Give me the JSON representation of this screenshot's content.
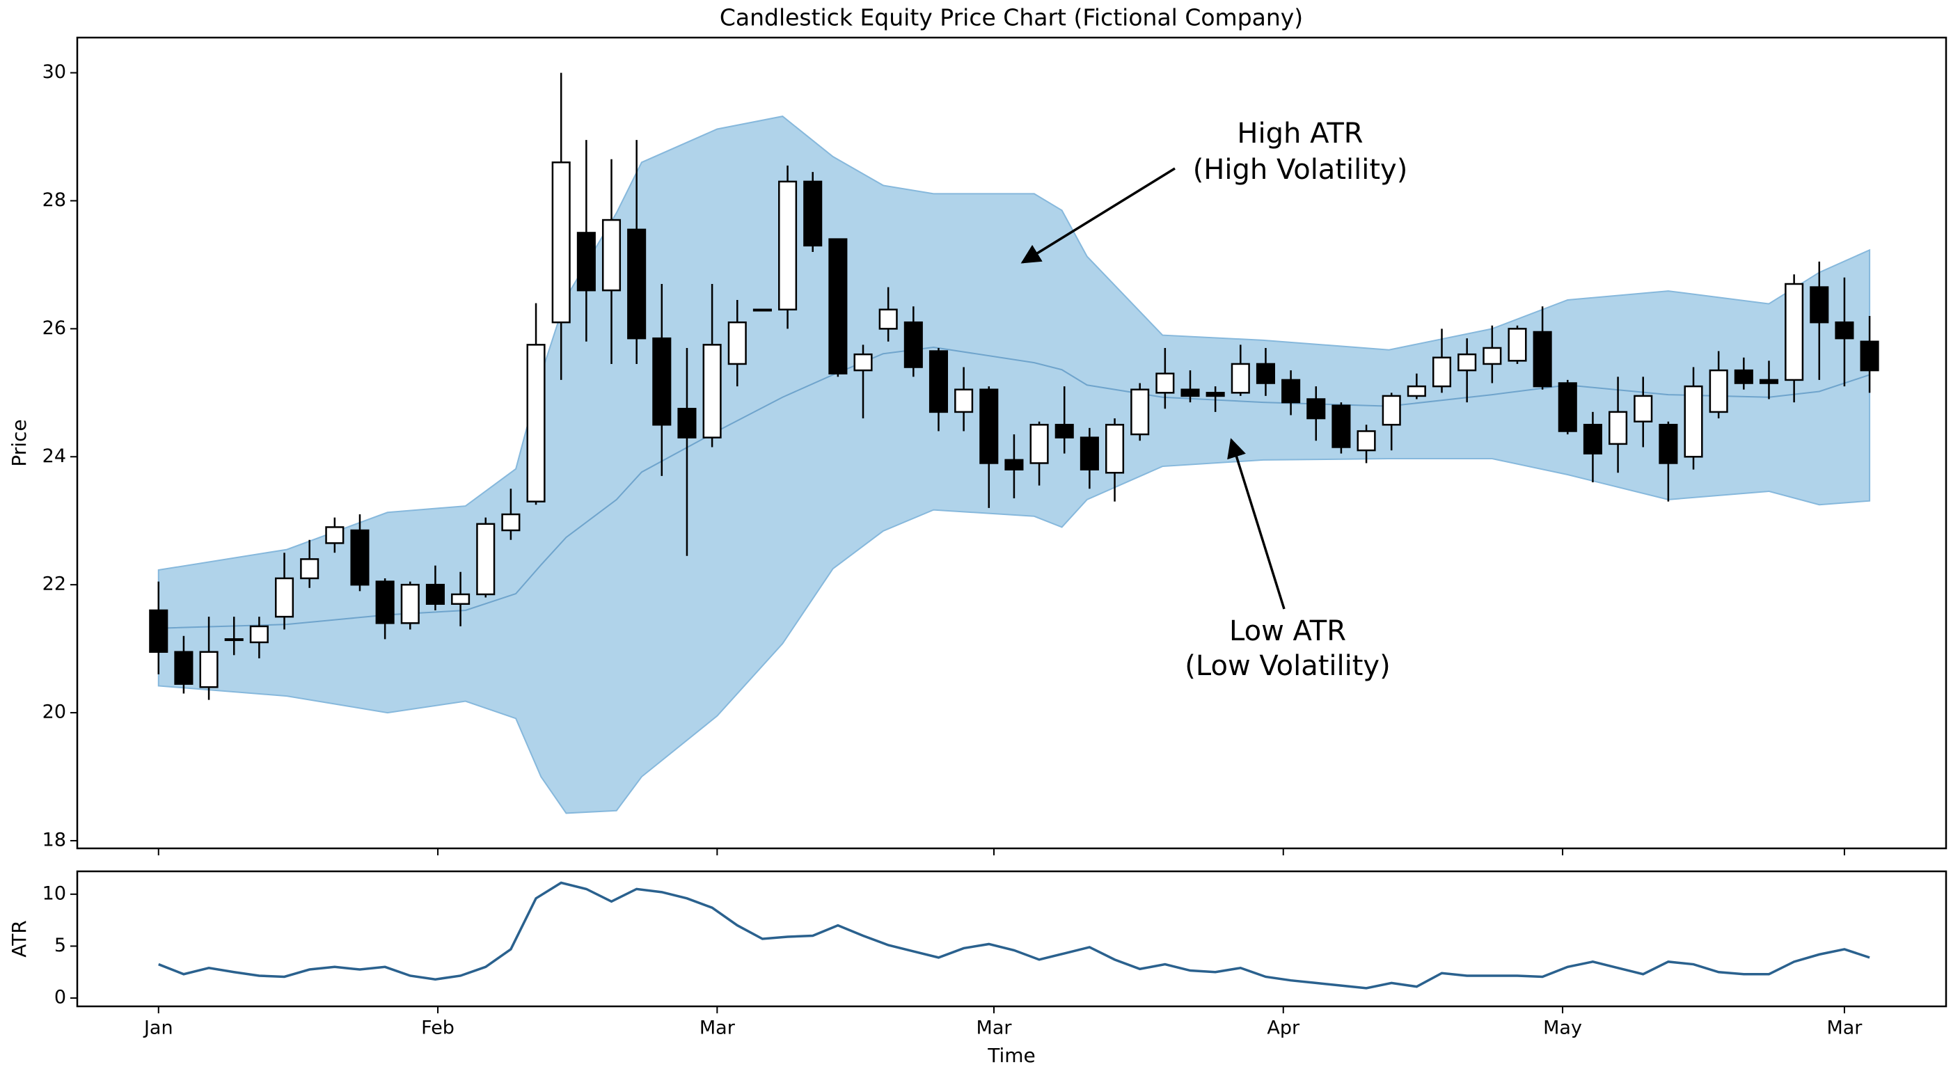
{
  "chart_data": [
    {
      "type": "candlestick",
      "title": "Candlestick Equity Price Chart (Fictional Company)",
      "ylabel": "Price",
      "x": [
        0,
        1,
        2,
        3,
        4,
        5,
        6,
        7,
        8,
        9,
        10,
        11,
        12,
        13,
        14,
        15,
        16,
        17,
        18,
        19,
        20,
        21,
        22,
        23,
        24,
        25,
        26,
        27,
        28,
        29,
        30,
        31,
        32,
        33,
        34,
        35,
        36,
        37,
        38,
        39,
        40,
        41,
        42,
        43,
        44,
        45,
        46,
        47,
        48,
        49,
        50,
        51,
        52,
        53,
        54,
        55,
        56,
        57,
        58,
        59,
        60,
        61,
        62,
        63,
        64,
        65,
        66,
        67,
        68
      ],
      "open": [
        21.6,
        20.95,
        20.4,
        21.15,
        21.1,
        21.5,
        22.1,
        22.65,
        22.85,
        22.05,
        21.4,
        22.0,
        21.7,
        21.85,
        22.85,
        23.3,
        26.1,
        27.5,
        26.6,
        27.55,
        25.85,
        24.75,
        24.3,
        25.45,
        26.3,
        26.3,
        28.3,
        27.4,
        25.35,
        26.0,
        26.1,
        25.65,
        24.7,
        25.05,
        23.95,
        23.9,
        24.5,
        24.3,
        23.75,
        24.35,
        25.0,
        25.05,
        25.0,
        25.0,
        25.45,
        25.2,
        24.9,
        24.8,
        24.1,
        24.5,
        24.95,
        25.1,
        25.35,
        25.45,
        25.5,
        25.95,
        25.15,
        24.5,
        24.2,
        24.55,
        24.5,
        24.0,
        24.7,
        25.35,
        25.2,
        25.2,
        26.65,
        26.1,
        25.8
      ],
      "high": [
        22.05,
        21.2,
        21.5,
        21.5,
        21.5,
        22.5,
        22.7,
        23.05,
        23.1,
        22.1,
        22.05,
        22.3,
        22.2,
        23.05,
        23.5,
        26.4,
        30.0,
        28.95,
        28.65,
        28.95,
        26.7,
        25.7,
        26.7,
        26.45,
        26.3,
        28.55,
        28.45,
        27.4,
        25.75,
        26.65,
        26.35,
        25.7,
        25.4,
        25.1,
        24.35,
        24.55,
        25.1,
        24.45,
        24.6,
        25.15,
        25.7,
        25.35,
        25.1,
        25.75,
        25.7,
        25.35,
        25.1,
        24.85,
        24.5,
        25.0,
        25.3,
        26.0,
        25.85,
        26.05,
        26.05,
        26.35,
        25.2,
        24.7,
        25.25,
        25.25,
        24.55,
        25.4,
        25.65,
        25.55,
        25.5,
        26.85,
        27.05,
        26.8,
        26.2
      ],
      "low": [
        20.6,
        20.3,
        20.2,
        20.9,
        20.85,
        21.3,
        21.95,
        22.5,
        21.9,
        21.15,
        21.3,
        21.6,
        21.35,
        21.8,
        22.7,
        23.25,
        25.2,
        25.8,
        25.45,
        25.45,
        23.7,
        22.45,
        24.15,
        25.1,
        26.3,
        26.0,
        27.2,
        25.25,
        24.6,
        25.8,
        25.25,
        24.4,
        24.4,
        23.2,
        23.35,
        23.55,
        24.05,
        23.5,
        23.3,
        24.25,
        24.75,
        24.85,
        24.7,
        24.95,
        24.95,
        24.65,
        24.25,
        24.05,
        23.9,
        24.1,
        24.9,
        25.0,
        24.85,
        25.15,
        25.45,
        25.05,
        24.35,
        23.6,
        23.75,
        24.15,
        23.3,
        23.8,
        24.6,
        25.05,
        24.9,
        24.85,
        25.2,
        25.1,
        25.0
      ],
      "close": [
        20.95,
        20.45,
        20.95,
        21.15,
        21.35,
        22.1,
        22.4,
        22.9,
        22.0,
        21.4,
        22.0,
        21.7,
        21.85,
        22.95,
        23.1,
        25.75,
        28.6,
        26.6,
        27.7,
        25.85,
        24.5,
        24.3,
        25.75,
        26.1,
        26.3,
        28.3,
        27.3,
        25.3,
        25.6,
        26.3,
        25.4,
        24.7,
        25.05,
        23.9,
        23.8,
        24.5,
        24.3,
        23.8,
        24.5,
        25.05,
        25.3,
        24.95,
        24.95,
        25.45,
        25.15,
        24.85,
        24.6,
        24.15,
        24.4,
        24.95,
        25.1,
        25.55,
        25.6,
        25.7,
        26.0,
        25.1,
        24.4,
        24.05,
        24.7,
        24.95,
        23.9,
        25.1,
        25.35,
        25.15,
        25.15,
        26.7,
        26.1,
        25.85,
        25.35
      ],
      "up_color": "#ffffff",
      "down_color": "#000000",
      "edge_color": "#000000",
      "band": {
        "x": [
          0,
          5.1,
          9.1,
          12.2,
          14.2,
          15.2,
          16.2,
          18.2,
          19.2,
          22.2,
          24.8,
          26.8,
          28.8,
          30.8,
          34.8,
          35.9,
          36.9,
          39.9,
          43.9,
          48.9,
          53.0,
          56.0,
          60.0,
          64.0,
          66.0,
          68.0
        ],
        "upper": [
          22.23,
          22.55,
          23.13,
          23.23,
          23.81,
          25.28,
          26.49,
          27.81,
          28.6,
          29.12,
          29.32,
          28.69,
          28.24,
          28.11,
          28.11,
          27.85,
          27.13,
          25.9,
          25.82,
          25.67,
          26.0,
          26.45,
          26.59,
          26.39,
          26.88,
          27.23
        ],
        "lower": [
          20.42,
          20.26,
          20.0,
          20.18,
          19.91,
          19.0,
          18.43,
          18.47,
          19.0,
          19.95,
          21.08,
          22.25,
          22.84,
          23.17,
          23.07,
          22.9,
          23.33,
          23.85,
          23.95,
          23.97,
          23.97,
          23.72,
          23.33,
          23.46,
          23.25,
          23.31
        ],
        "middle": [
          21.32,
          21.38,
          21.53,
          21.6,
          21.86,
          22.31,
          22.74,
          23.33,
          23.76,
          24.4,
          24.93,
          25.28,
          25.61,
          25.71,
          25.47,
          25.36,
          25.12,
          24.93,
          24.85,
          24.79,
          24.97,
          25.12,
          24.97,
          24.93,
          25.02,
          25.28
        ],
        "color": "#b0d3ea",
        "edge_color": "#86b8dc",
        "line_color": "#6fa4cc"
      },
      "annotations": [
        {
          "lines": [
            "High ATR",
            "(High Volatility)"
          ]
        },
        {
          "lines": [
            "Low ATR",
            "(Low Volatility)"
          ]
        }
      ],
      "xlim": [
        -3.23,
        71.04
      ],
      "ylim": [
        17.88,
        30.55
      ],
      "yticks": [
        18,
        20,
        22,
        24,
        26,
        28,
        30
      ]
    },
    {
      "type": "line",
      "ylabel": "ATR",
      "xlabel": "Time",
      "x": [
        0,
        1,
        2,
        3,
        4,
        5,
        6,
        7,
        8,
        9,
        10,
        11,
        12,
        13,
        14,
        15,
        16,
        17,
        18,
        19,
        20,
        21,
        22,
        23,
        24,
        25,
        26,
        27,
        28,
        29,
        30,
        31,
        32,
        33,
        34,
        35,
        36,
        37,
        38,
        39,
        40,
        41,
        42,
        43,
        44,
        45,
        46,
        47,
        48,
        49,
        50,
        51,
        52,
        53,
        54,
        55,
        56,
        57,
        58,
        59,
        60,
        61,
        62,
        63,
        64,
        65,
        66,
        67,
        68
      ],
      "values": [
        3.25,
        2.3,
        2.9,
        2.5,
        2.15,
        2.05,
        2.75,
        3.0,
        2.75,
        3.0,
        2.15,
        1.8,
        2.15,
        3.0,
        4.7,
        9.6,
        11.1,
        10.5,
        9.3,
        10.5,
        10.2,
        9.6,
        8.7,
        7.0,
        5.7,
        5.9,
        6.0,
        7.0,
        6.0,
        5.1,
        4.5,
        3.9,
        4.8,
        5.2,
        4.6,
        3.7,
        4.3,
        4.9,
        3.7,
        2.8,
        3.25,
        2.65,
        2.5,
        2.9,
        2.05,
        1.7,
        1.45,
        1.2,
        0.95,
        1.45,
        1.1,
        2.4,
        2.15,
        2.15,
        2.15,
        2.05,
        3.0,
        3.5,
        2.9,
        2.3,
        3.5,
        3.25,
        2.5,
        2.3,
        2.3,
        3.5,
        4.2,
        4.7,
        3.9
      ],
      "color": "#2a618e",
      "xlim": [
        -3.23,
        71.04
      ],
      "ylim": [
        -0.8,
        12.2
      ],
      "yticks": [
        0,
        5,
        10
      ],
      "xticks": [
        {
          "value": 0,
          "label": "Jan"
        },
        {
          "value": 11.1,
          "label": "Feb"
        },
        {
          "value": 22.2,
          "label": "Mar"
        },
        {
          "value": 33.2,
          "label": "Mar"
        },
        {
          "value": 44.7,
          "label": "Apr"
        },
        {
          "value": 55.8,
          "label": "May"
        },
        {
          "value": 67,
          "label": "Mar"
        }
      ]
    }
  ]
}
